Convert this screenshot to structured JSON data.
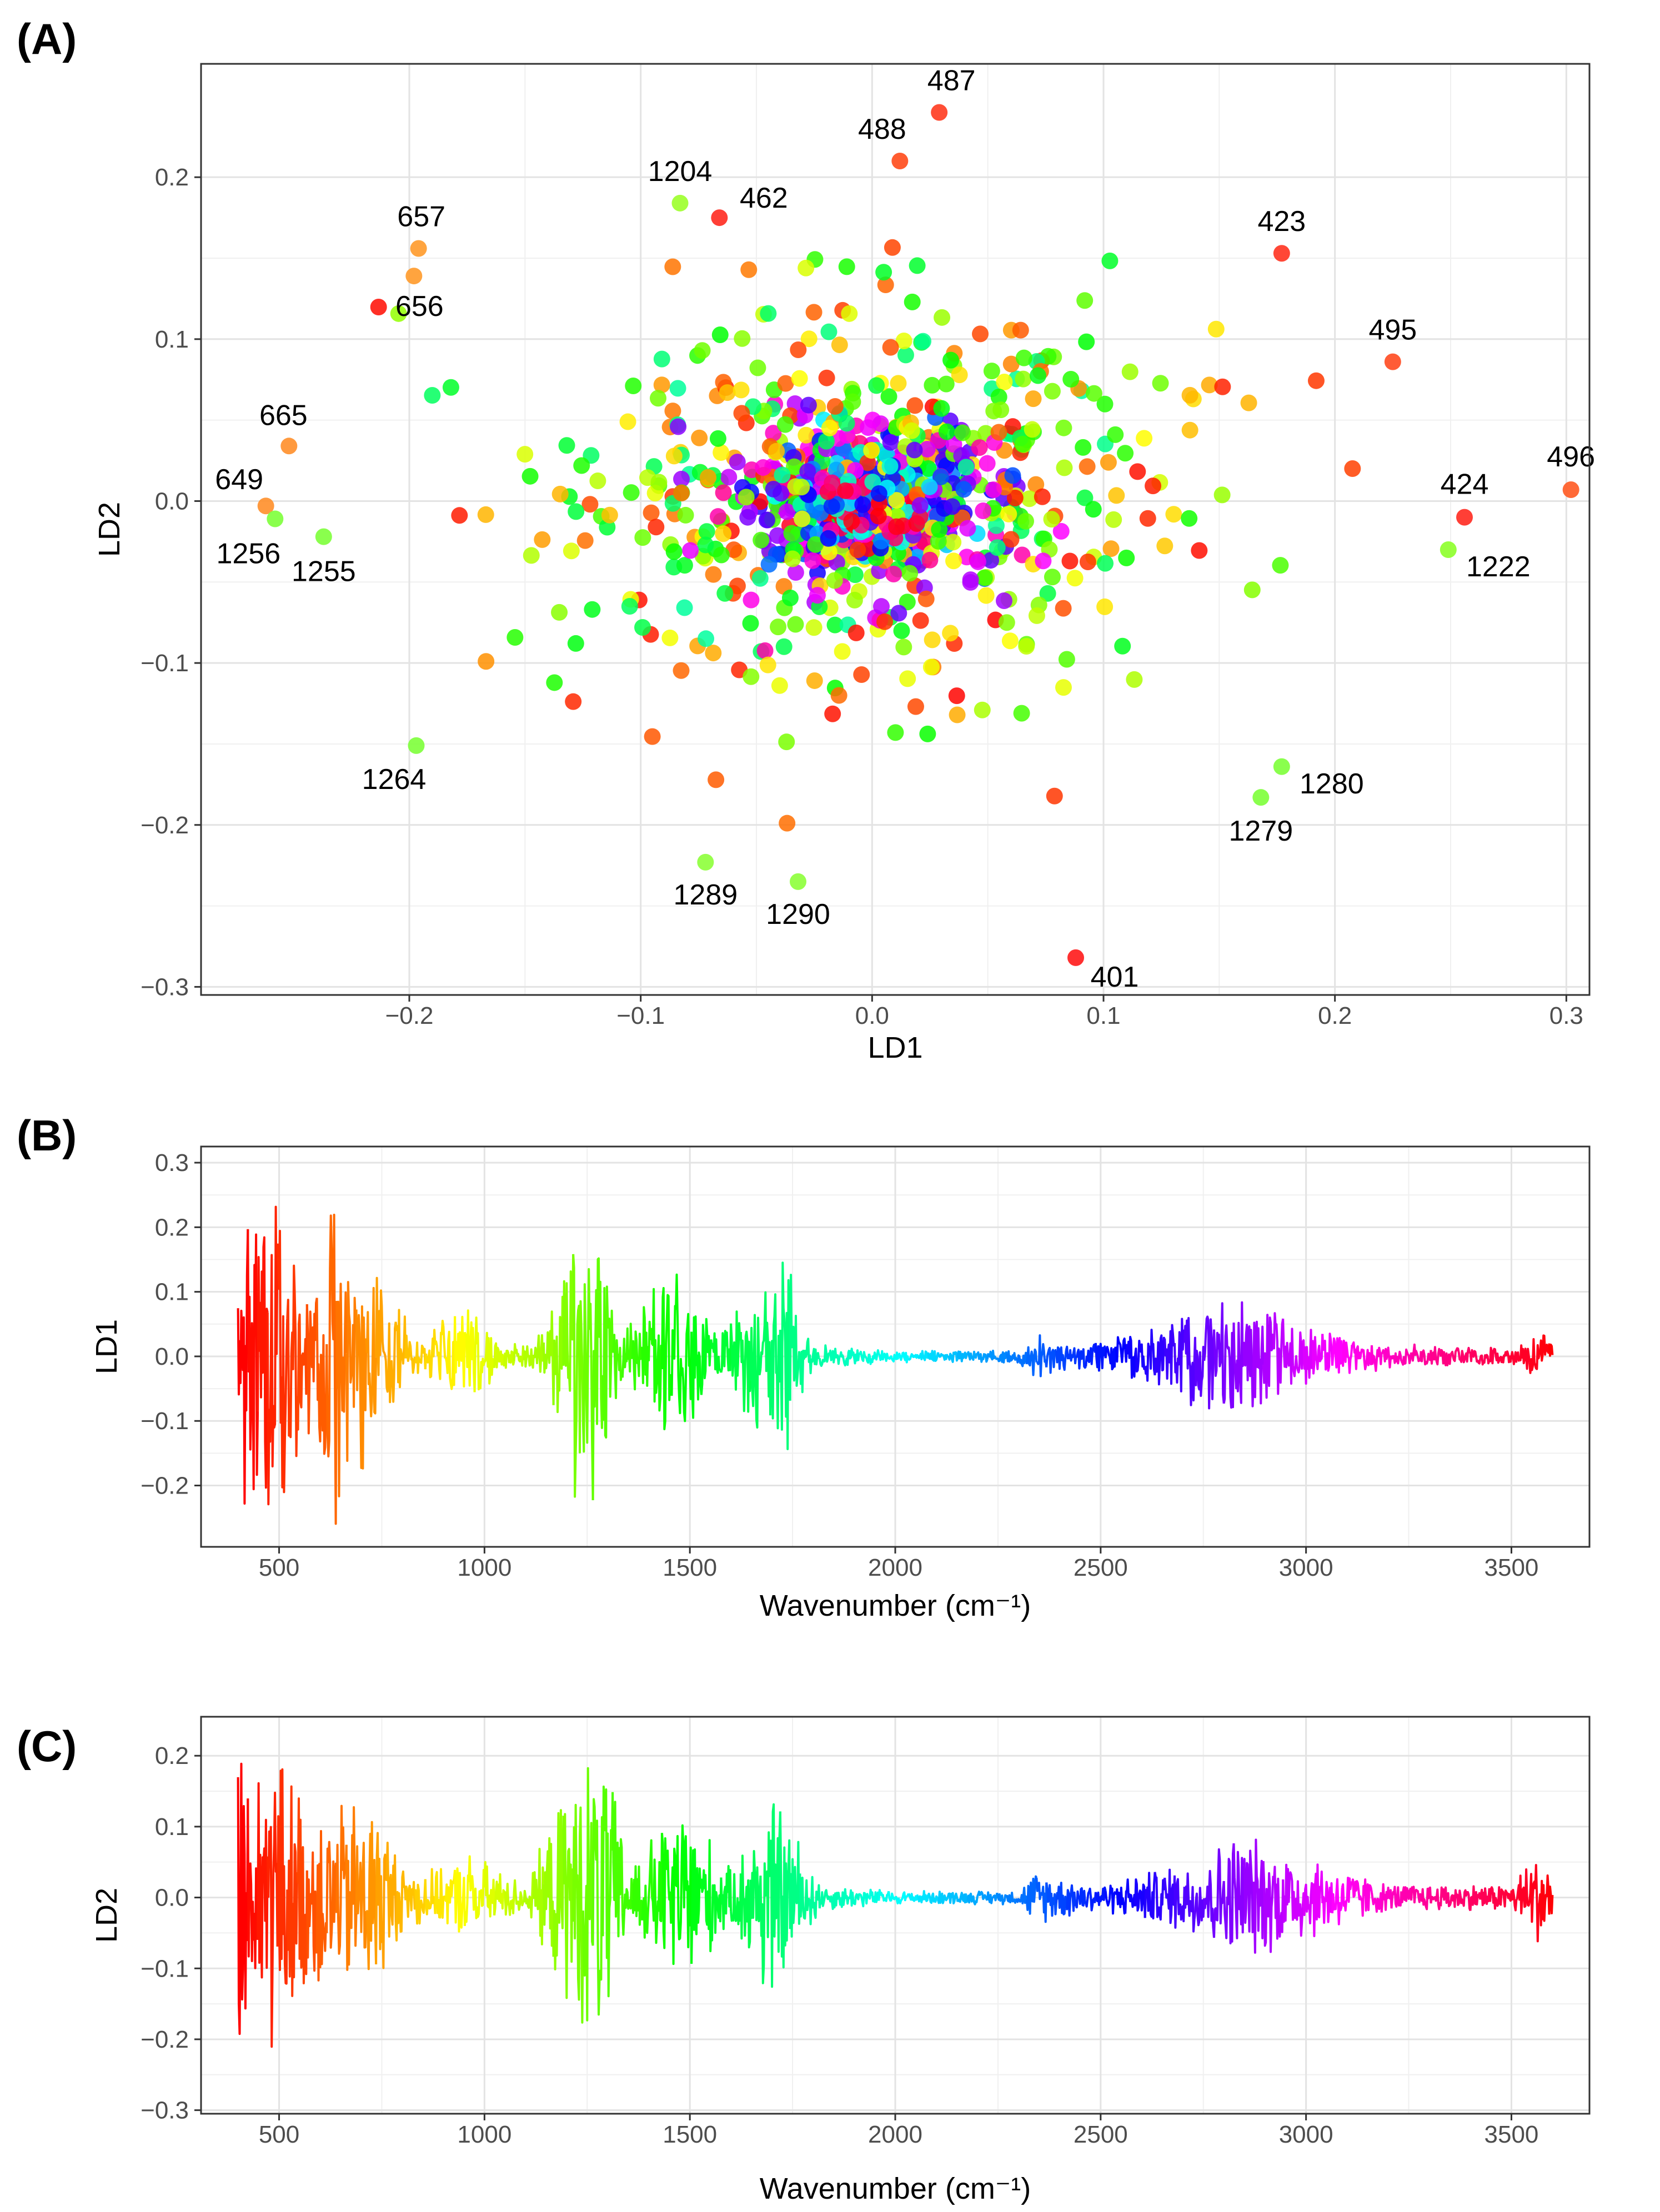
{
  "chart_data": [
    {
      "panel_label": "(A)",
      "type": "scatter",
      "xlabel": "LD1",
      "ylabel": "LD2",
      "xlim": [
        -0.29,
        0.31
      ],
      "ylim": [
        -0.305,
        0.27
      ],
      "xticks": [
        -0.2,
        -0.1,
        0.0,
        0.1,
        0.2,
        0.3
      ],
      "xtick_labels": [
        "−0.2",
        "−0.1",
        "0.0",
        "0.1",
        "0.2",
        "0.3"
      ],
      "yticks": [
        -0.3,
        -0.2,
        -0.1,
        0.0,
        0.1,
        0.2
      ],
      "ytick_labels": [
        "−0.3",
        "−0.2",
        "−0.1",
        "0.0",
        "0.1",
        "0.2"
      ],
      "grid": true,
      "color_scale": "rainbow by wavenumber (400–3600 cm⁻¹: red→orange→yellow→green→cyan→blue→purple→magenta→red)",
      "labeled_points": [
        {
          "label": "487",
          "x": 0.029,
          "y": 0.24
        },
        {
          "label": "488",
          "x": 0.012,
          "y": 0.21
        },
        {
          "label": "1204",
          "x": -0.083,
          "y": 0.184
        },
        {
          "label": "462",
          "x": -0.066,
          "y": 0.175
        },
        {
          "label": "657",
          "x": -0.196,
          "y": 0.156
        },
        {
          "label": "656",
          "x": -0.198,
          "y": 0.139
        },
        {
          "label": "423",
          "x": 0.177,
          "y": 0.153
        },
        {
          "label": "495",
          "x": 0.225,
          "y": 0.086
        },
        {
          "label": "665",
          "x": -0.252,
          "y": 0.034
        },
        {
          "label": "649",
          "x": -0.262,
          "y": -0.003
        },
        {
          "label": "1256",
          "x": -0.258,
          "y": -0.011
        },
        {
          "label": "1255",
          "x": -0.237,
          "y": -0.022
        },
        {
          "label": "424",
          "x": 0.256,
          "y": -0.01
        },
        {
          "label": "496",
          "x": 0.302,
          "y": 0.007
        },
        {
          "label": "1222",
          "x": 0.249,
          "y": -0.03
        },
        {
          "label": "1264",
          "x": -0.197,
          "y": -0.151
        },
        {
          "label": "1280",
          "x": 0.177,
          "y": -0.164
        },
        {
          "label": "1279",
          "x": 0.168,
          "y": -0.183
        },
        {
          "label": "1289",
          "x": -0.072,
          "y": -0.223
        },
        {
          "label": "1290",
          "x": -0.032,
          "y": -0.235
        },
        {
          "label": "401",
          "x": 0.088,
          "y": -0.282
        }
      ]
    },
    {
      "panel_label": "(B)",
      "type": "line",
      "xlabel": "Wavenumber (cm⁻¹)",
      "ylabel": "LD1",
      "xlim": [
        310,
        3690
      ],
      "ylim": [
        -0.295,
        0.325
      ],
      "xticks": [
        500,
        1000,
        1500,
        2000,
        2500,
        3000,
        3500
      ],
      "xtick_labels": [
        "500",
        "1000",
        "1500",
        "2000",
        "2500",
        "3000",
        "3500"
      ],
      "yticks": [
        -0.2,
        -0.1,
        0.0,
        0.1,
        0.2,
        0.3
      ],
      "ytick_labels": [
        "−0.2",
        "−0.1",
        "0.0",
        "0.1",
        "0.2",
        "0.3"
      ],
      "grid": true,
      "x_range": [
        400,
        3600
      ],
      "envelope": [
        {
          "x": 400,
          "amp": 0.12
        },
        {
          "x": 420,
          "amp": 0.26
        },
        {
          "x": 490,
          "amp": 0.3
        },
        {
          "x": 560,
          "amp": 0.12
        },
        {
          "x": 640,
          "amp": 0.27
        },
        {
          "x": 700,
          "amp": 0.2
        },
        {
          "x": 780,
          "amp": 0.1
        },
        {
          "x": 850,
          "amp": 0.03
        },
        {
          "x": 960,
          "amp": 0.1
        },
        {
          "x": 1050,
          "amp": 0.02
        },
        {
          "x": 1150,
          "amp": 0.04
        },
        {
          "x": 1230,
          "amp": 0.25
        },
        {
          "x": 1260,
          "amp": 0.26
        },
        {
          "x": 1330,
          "amp": 0.06
        },
        {
          "x": 1480,
          "amp": 0.15
        },
        {
          "x": 1560,
          "amp": 0.04
        },
        {
          "x": 1700,
          "amp": 0.16
        },
        {
          "x": 1740,
          "amp": 0.16
        },
        {
          "x": 1800,
          "amp": 0.02
        },
        {
          "x": 2000,
          "amp": 0.01
        },
        {
          "x": 2300,
          "amp": 0.01
        },
        {
          "x": 2350,
          "amp": 0.04
        },
        {
          "x": 2450,
          "amp": 0.02
        },
        {
          "x": 2600,
          "amp": 0.04
        },
        {
          "x": 2740,
          "amp": 0.09
        },
        {
          "x": 2820,
          "amp": 0.1
        },
        {
          "x": 3000,
          "amp": 0.05
        },
        {
          "x": 3200,
          "amp": 0.02
        },
        {
          "x": 3500,
          "amp": 0.015
        },
        {
          "x": 3580,
          "amp": 0.04
        },
        {
          "x": 3600,
          "amp": 0.03
        }
      ]
    },
    {
      "panel_label": "(C)",
      "type": "line",
      "xlabel": "Wavenumber (cm⁻¹)",
      "ylabel": "LD2",
      "xlim": [
        310,
        3690
      ],
      "ylim": [
        -0.305,
        0.255
      ],
      "xticks": [
        500,
        1000,
        1500,
        2000,
        2500,
        3000,
        3500
      ],
      "xtick_labels": [
        "500",
        "1000",
        "1500",
        "2000",
        "2500",
        "3000",
        "3500"
      ],
      "yticks": [
        -0.3,
        -0.2,
        -0.1,
        0.0,
        0.1,
        0.2
      ],
      "ytick_labels": [
        "−0.3",
        "−0.2",
        "−0.1",
        "0.0",
        "0.1",
        "0.2"
      ],
      "grid": true,
      "x_range": [
        400,
        3600
      ],
      "envelope": [
        {
          "x": 400,
          "amp": 0.28
        },
        {
          "x": 440,
          "amp": 0.2
        },
        {
          "x": 490,
          "amp": 0.24
        },
        {
          "x": 560,
          "amp": 0.15
        },
        {
          "x": 650,
          "amp": 0.14
        },
        {
          "x": 730,
          "amp": 0.16
        },
        {
          "x": 800,
          "amp": 0.05
        },
        {
          "x": 900,
          "amp": 0.04
        },
        {
          "x": 960,
          "amp": 0.07
        },
        {
          "x": 1100,
          "amp": 0.02
        },
        {
          "x": 1210,
          "amp": 0.18
        },
        {
          "x": 1290,
          "amp": 0.24
        },
        {
          "x": 1350,
          "amp": 0.05
        },
        {
          "x": 1490,
          "amp": 0.15
        },
        {
          "x": 1600,
          "amp": 0.04
        },
        {
          "x": 1690,
          "amp": 0.17
        },
        {
          "x": 1750,
          "amp": 0.11
        },
        {
          "x": 1820,
          "amp": 0.02
        },
        {
          "x": 2000,
          "amp": 0.01
        },
        {
          "x": 2300,
          "amp": 0.01
        },
        {
          "x": 2340,
          "amp": 0.04
        },
        {
          "x": 2500,
          "amp": 0.02
        },
        {
          "x": 2740,
          "amp": 0.06
        },
        {
          "x": 2830,
          "amp": 0.1
        },
        {
          "x": 3030,
          "amp": 0.06
        },
        {
          "x": 3200,
          "amp": 0.02
        },
        {
          "x": 3500,
          "amp": 0.02
        },
        {
          "x": 3570,
          "amp": 0.08
        },
        {
          "x": 3600,
          "amp": 0.04
        }
      ]
    }
  ]
}
